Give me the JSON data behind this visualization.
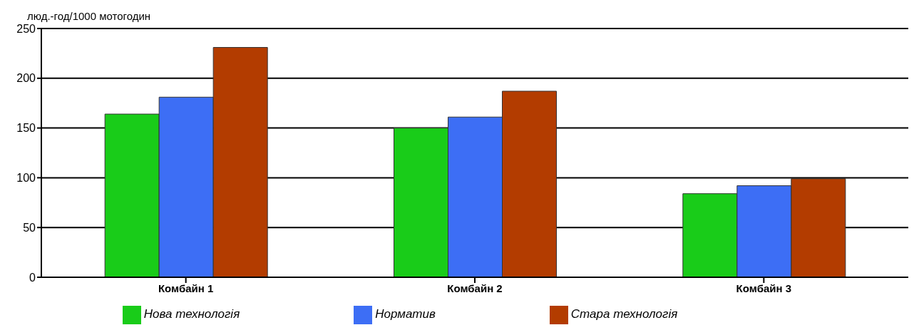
{
  "chart_data": {
    "type": "bar",
    "ylabel": "люд.-год/1000 мотогодин",
    "categories": [
      "Комбайн 1",
      "Комбайн 2",
      "Комбайн 3"
    ],
    "series": [
      {
        "name": "Нова технологія",
        "color": "#19cc19",
        "values": [
          164,
          150,
          84
        ]
      },
      {
        "name": "Норматив",
        "color": "#3d6ef5",
        "values": [
          181,
          161,
          92
        ]
      },
      {
        "name": "Стара технологія",
        "color": "#b33c00",
        "values": [
          231,
          187,
          99
        ]
      }
    ],
    "ylim": [
      0,
      250
    ],
    "yticks": [
      0,
      50,
      100,
      150,
      200,
      250
    ],
    "grid": "y",
    "legend": "bottom"
  }
}
